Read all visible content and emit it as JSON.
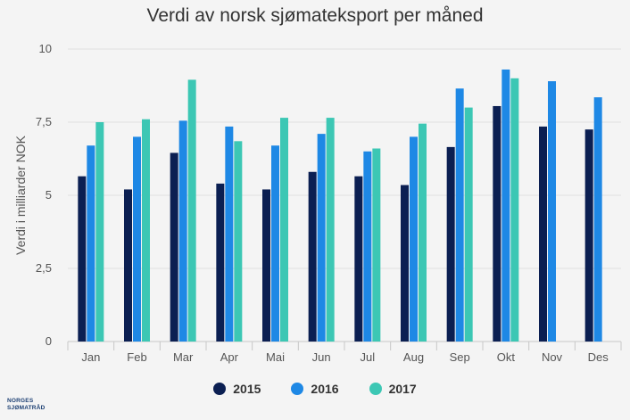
{
  "chart_data": {
    "type": "bar",
    "title": "Verdi av norsk sjømateksport per måned",
    "xlabel": "",
    "ylabel": "Verdi i milliarder NOK",
    "ylim": [
      0,
      10
    ],
    "yticks": [
      {
        "value": 0,
        "label": "0"
      },
      {
        "value": 2.5,
        "label": "2,5"
      },
      {
        "value": 5,
        "label": "5"
      },
      {
        "value": 7.5,
        "label": "7,5"
      },
      {
        "value": 10,
        "label": "10"
      }
    ],
    "categories": [
      "Jan",
      "Feb",
      "Mar",
      "Apr",
      "Mai",
      "Jun",
      "Jul",
      "Aug",
      "Sep",
      "Okt",
      "Nov",
      "Des"
    ],
    "series": [
      {
        "name": "2015",
        "color": "#0b1f52",
        "values": [
          5.65,
          5.2,
          6.45,
          5.4,
          5.2,
          5.8,
          5.65,
          5.35,
          6.65,
          8.05,
          7.35,
          7.25
        ]
      },
      {
        "name": "2016",
        "color": "#1e88e5",
        "values": [
          6.7,
          7.0,
          7.55,
          7.35,
          6.7,
          7.1,
          6.5,
          7.0,
          8.65,
          9.3,
          8.9,
          8.35
        ]
      },
      {
        "name": "2017",
        "color": "#3cc7b4",
        "values": [
          7.5,
          7.6,
          8.95,
          6.85,
          7.65,
          7.65,
          6.6,
          7.45,
          8.0,
          9.0,
          null,
          null
        ]
      }
    ],
    "grid": true,
    "legend_position": "bottom"
  },
  "logo": {
    "line1": "NORGES",
    "line2": "SJØMATRÅD"
  }
}
